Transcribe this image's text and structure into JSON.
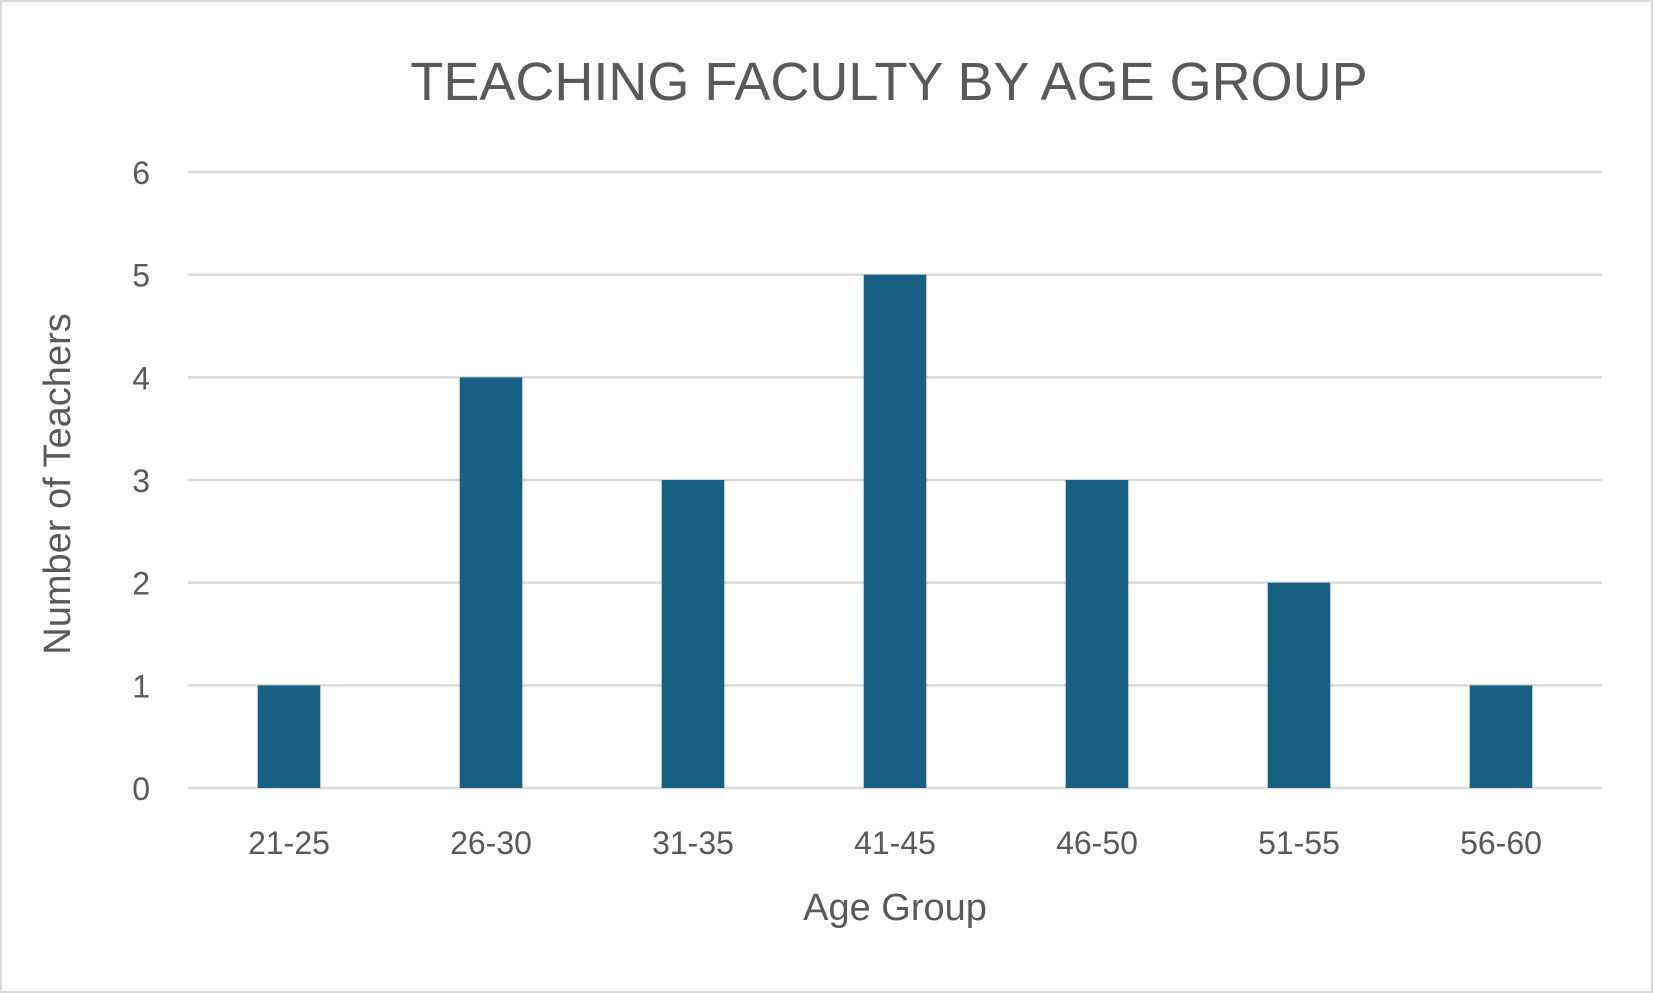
{
  "chart_data": {
    "type": "bar",
    "title": "TEACHING FACULTY BY AGE GROUP",
    "xlabel": "Age Group",
    "ylabel": "Number of Teachers",
    "categories": [
      "21-25",
      "26-30",
      "31-35",
      "41-45",
      "46-50",
      "51-55",
      "56-60"
    ],
    "values": [
      1,
      4,
      3,
      5,
      3,
      2,
      1
    ],
    "ylim": [
      0,
      6
    ],
    "yticks": [
      "0",
      "1",
      "2",
      "3",
      "4",
      "5",
      "6"
    ],
    "grid": true,
    "legend": "none",
    "colors": {
      "bar": "#176083",
      "grid": "#d9d9d9",
      "text": "#595959"
    }
  }
}
